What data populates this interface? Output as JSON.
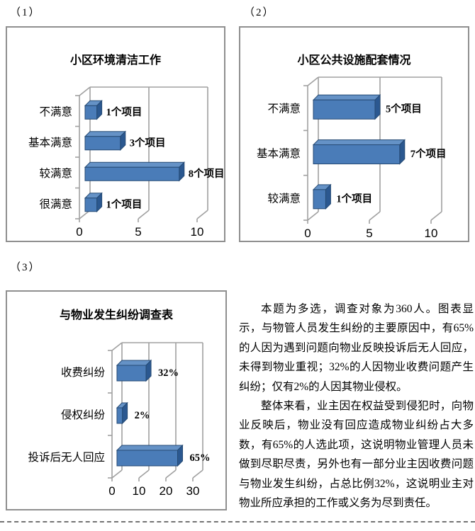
{
  "sections": [
    {
      "label": "（1）"
    },
    {
      "label": "（2）"
    },
    {
      "label": "（3）"
    }
  ],
  "analysis": {
    "paragraphs": [
      "本题为多选，调查对象为360人。图表显示，与物管人员发生纠纷的主要原因中，有65%的人因为遇到问题向物业反映投诉后无人回应，未得到物业重视；32%的人因物业收费问题产生纠纷；仅有2%的人因其物业侵权。",
      "整体来看，业主因在权益受到侵犯时，向物业反映后，物业没有回应造成物业纠纷占大多数，有65%的人选此项，这说明物业管理人员未做到尽职尽责，另外也有一部分业主因收费问题与物业发生纠纷，占总比例32%，这说明业主对物业所应承担的工作或义务为尽到责任。"
    ]
  },
  "colors": {
    "bar_front": "#4a7cb8",
    "bar_top": "#6592c6",
    "bar_side": "#2b5890",
    "bar_outline": "#254a74",
    "grid": "#a0a0a0",
    "box_border": "#8f8f8f",
    "text": "#000000"
  },
  "chart_data": [
    {
      "type": "bar",
      "orientation": "horizontal",
      "title": "小区环境清洁工作",
      "categories": [
        "不满意",
        "基本满意",
        "较满意",
        "很满意"
      ],
      "values": [
        1,
        3,
        8,
        1
      ],
      "value_labels": [
        "1个项目",
        "3个项目",
        "8个项目",
        "1个项目"
      ],
      "xticks": [
        0,
        5,
        10
      ],
      "xlim": [
        0,
        10
      ],
      "grid": true,
      "legend": false
    },
    {
      "type": "bar",
      "orientation": "horizontal",
      "title": "小区公共设施配套情况",
      "categories": [
        "不满意",
        "基本满意",
        "较满意"
      ],
      "values": [
        5,
        7,
        1
      ],
      "value_labels": [
        "5个项目",
        "7个项目",
        "1个项目"
      ],
      "xticks": [
        0,
        5,
        10
      ],
      "xlim": [
        0,
        10
      ],
      "grid": true,
      "legend": false
    },
    {
      "type": "bar",
      "orientation": "horizontal",
      "title": "与物业发生纠纷调查表",
      "categories": [
        "收费纠纷",
        "侵权纠纷",
        "投诉后无人回应"
      ],
      "values": [
        32,
        2,
        65
      ],
      "value_labels": [
        "32%",
        "2%",
        "65%"
      ],
      "bar_plot_lengths": [
        10.8,
        2,
        22.5
      ],
      "xticks": [
        0,
        10,
        20,
        30
      ],
      "xlim": [
        0,
        30
      ],
      "grid": true,
      "legend": false
    }
  ]
}
